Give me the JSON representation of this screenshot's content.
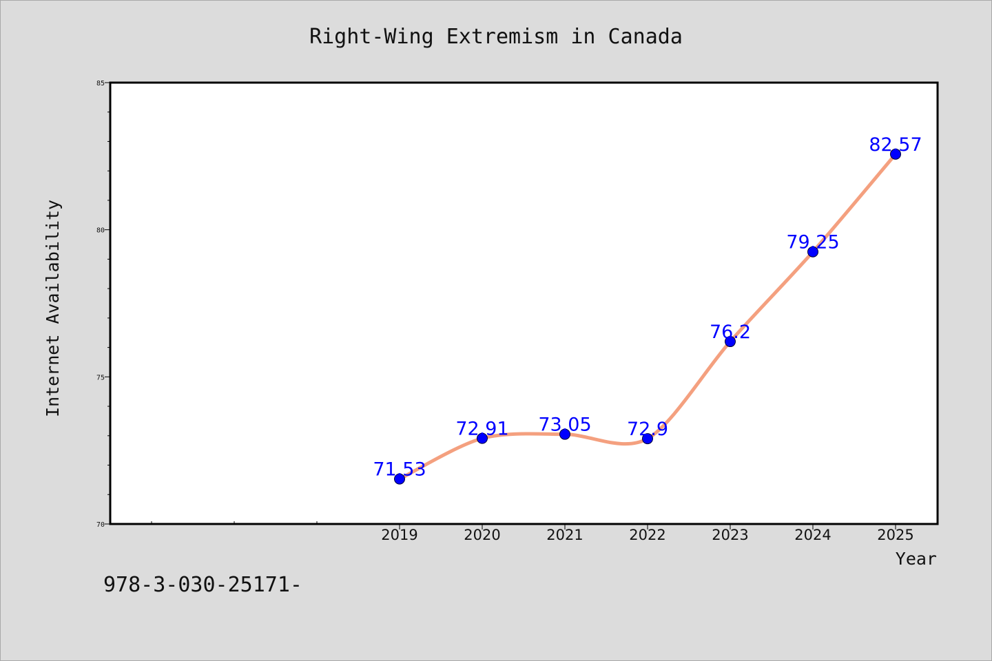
{
  "chart_data": {
    "type": "line",
    "title": "Right-Wing Extremism in Canada",
    "xlabel": "Year",
    "ylabel": "Internet Availability",
    "x": [
      "2019",
      "2020",
      "2021",
      "2022",
      "2023",
      "2024",
      "2025"
    ],
    "values": [
      71.53,
      72.91,
      73.05,
      72.9,
      76.2,
      79.25,
      82.57
    ],
    "data_labels": [
      "71.53",
      "72.91",
      "73.05",
      "72.9",
      "76.2",
      "79.25",
      "82.57"
    ],
    "ylim": [
      70,
      85
    ],
    "y_ticks": [
      "70",
      "75",
      "80",
      "85"
    ],
    "grid": false,
    "line_color": "#f4a07f",
    "marker_color": "#0000ff",
    "label_color": "#0000ff"
  },
  "footer_code": "978-3-030-25171-"
}
